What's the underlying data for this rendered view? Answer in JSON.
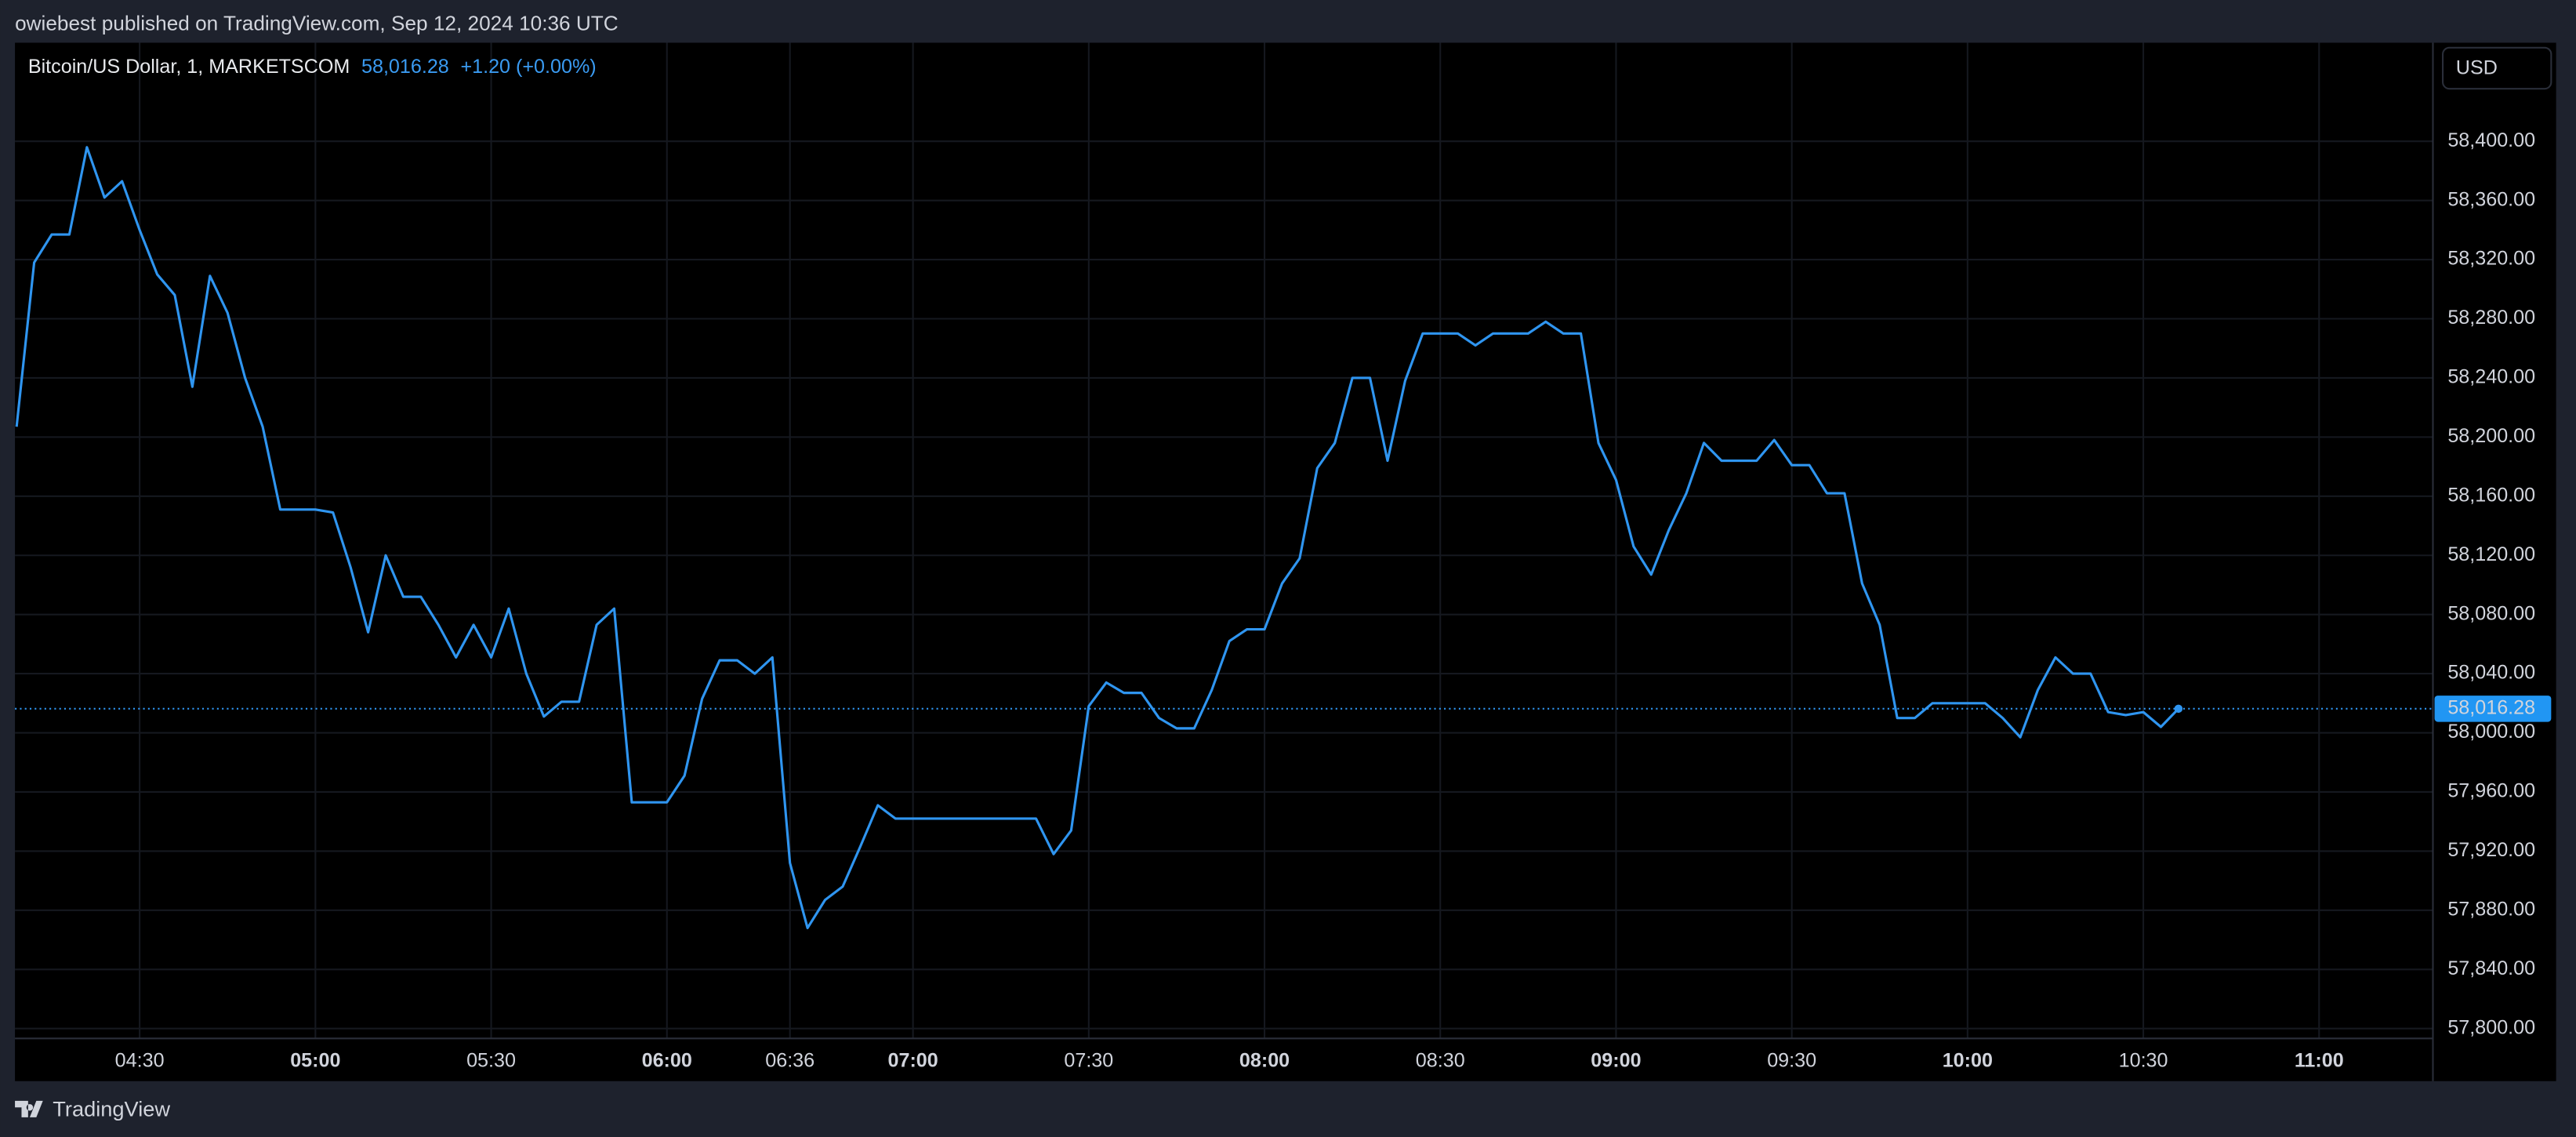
{
  "header": {
    "publisher": "owiebest published on TradingView.com, Sep 12, 2024 10:36 UTC"
  },
  "chart_data": {
    "type": "line",
    "title": "Bitcoin/US Dollar, 1, MARKETSCOM",
    "last_price_label": "58,016.28",
    "change": "+1.20 (+0.00%)",
    "currency": "USD",
    "color": "#2f95f0",
    "grid": true,
    "x": [
      "04:09",
      "04:12",
      "04:15",
      "04:18",
      "04:21",
      "04:24",
      "04:27",
      "04:30",
      "04:33",
      "04:36",
      "04:39",
      "04:42",
      "04:45",
      "04:48",
      "04:51",
      "04:54",
      "04:57",
      "05:00",
      "05:03",
      "05:06",
      "05:09",
      "05:12",
      "05:15",
      "05:18",
      "05:21",
      "05:24",
      "05:27",
      "05:30",
      "05:33",
      "05:36",
      "05:39",
      "05:42",
      "05:45",
      "05:48",
      "05:51",
      "05:54",
      "05:57",
      "06:00",
      "06:03",
      "06:06",
      "06:09",
      "06:12",
      "06:15",
      "06:18",
      "06:36",
      "06:42",
      "06:45",
      "06:48",
      "06:51",
      "06:54",
      "06:57",
      "07:00",
      "07:03",
      "07:06",
      "07:09",
      "07:12",
      "07:15",
      "07:18",
      "07:21",
      "07:24",
      "07:27",
      "07:30",
      "07:33",
      "07:36",
      "07:39",
      "07:42",
      "07:45",
      "07:48",
      "07:51",
      "07:54",
      "07:57",
      "08:00",
      "08:03",
      "08:06",
      "08:09",
      "08:12",
      "08:15",
      "08:18",
      "08:21",
      "08:24",
      "08:27",
      "08:30",
      "08:33",
      "08:36",
      "08:39",
      "08:42",
      "08:45",
      "08:48",
      "08:51",
      "08:54",
      "08:57",
      "09:00",
      "09:03",
      "09:06",
      "09:09",
      "09:12",
      "09:15",
      "09:18",
      "09:21",
      "09:24",
      "09:27",
      "09:30",
      "09:33",
      "09:36",
      "09:39",
      "09:42",
      "09:45",
      "09:48",
      "09:51",
      "09:54",
      "09:57",
      "10:00",
      "10:03",
      "10:06",
      "10:09",
      "10:12",
      "10:15",
      "10:18",
      "10:21",
      "10:24",
      "10:27",
      "10:30",
      "10:33",
      "10:36"
    ],
    "values": [
      58207,
      58318,
      58337,
      58337,
      58396,
      58362,
      58373,
      58340,
      58310,
      58296,
      58234,
      58309,
      58284,
      58240,
      58207,
      58151,
      58151,
      58151,
      58149,
      58112,
      58068,
      58120,
      58092,
      58092,
      58073,
      58051,
      58073,
      58051,
      58084,
      58040,
      58011,
      58021,
      58021,
      58073,
      58084,
      57953,
      57953,
      57953,
      57971,
      58023,
      58049,
      58049,
      58040,
      58051,
      57912,
      57868,
      57887,
      57896,
      57923,
      57951,
      57942,
      57942,
      57942,
      57942,
      57942,
      57942,
      57942,
      57942,
      57942,
      57918,
      57934,
      58018,
      58034,
      58027,
      58027,
      58010,
      58003,
      58003,
      58029,
      58062,
      58070,
      58070,
      58101,
      58118,
      58179,
      58196,
      58240,
      58240,
      58184,
      58238,
      58270,
      58270,
      58270,
      58262,
      58270,
      58270,
      58270,
      58278,
      58270,
      58270,
      58196,
      58171,
      58126,
      58107,
      58137,
      58162,
      58196,
      58184,
      58184,
      58184,
      58198,
      58181,
      58181,
      58162,
      58162,
      58101,
      58073,
      58010,
      58010,
      58020,
      58020,
      58020,
      58020,
      58010,
      57997,
      58029,
      58051,
      58040,
      58040,
      58014,
      58012,
      58014,
      58004,
      58016.28
    ],
    "ylim": [
      57793.33,
      58466.67
    ],
    "yticks": [
      {
        "value": 57800,
        "label": "57,800.00"
      },
      {
        "value": 57840,
        "label": "57,840.00"
      },
      {
        "value": 57880,
        "label": "57,880.00"
      },
      {
        "value": 57920,
        "label": "57,920.00"
      },
      {
        "value": 57960,
        "label": "57,960.00"
      },
      {
        "value": 58000,
        "label": "58,000.00"
      },
      {
        "value": 58040,
        "label": "58,040.00"
      },
      {
        "value": 58080,
        "label": "58,080.00"
      },
      {
        "value": 58120,
        "label": "58,120.00"
      },
      {
        "value": 58160,
        "label": "58,160.00"
      },
      {
        "value": 58200,
        "label": "58,200.00"
      },
      {
        "value": 58240,
        "label": "58,240.00"
      },
      {
        "value": 58280,
        "label": "58,280.00"
      },
      {
        "value": 58320,
        "label": "58,320.00"
      },
      {
        "value": 58360,
        "label": "58,360.00"
      },
      {
        "value": 58400,
        "label": "58,400.00"
      }
    ],
    "xticks": [
      "04:30",
      "05:00",
      "05:30",
      "06:00",
      "06:36",
      "07:00",
      "07:30",
      "08:00",
      "08:30",
      "09:00",
      "09:30",
      "10:00",
      "10:30",
      "11:00"
    ]
  },
  "footer": {
    "brand": "TradingView"
  }
}
